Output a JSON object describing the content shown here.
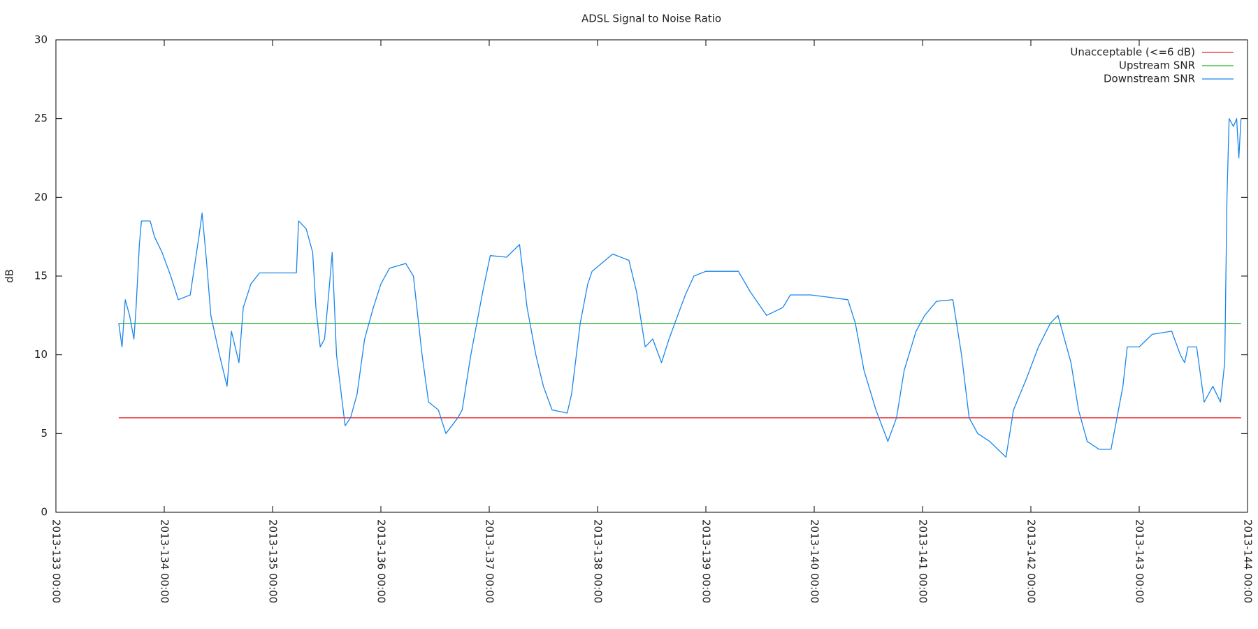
{
  "chart_data": {
    "type": "line",
    "title": "ADSL Signal to Noise Ratio",
    "y_label": "dB",
    "xlim": [
      133,
      144
    ],
    "xticks": [
      {
        "value": 133,
        "label": "2013-133 00:00"
      },
      {
        "value": 134,
        "label": "2013-134 00:00"
      },
      {
        "value": 135,
        "label": "2013-135 00:00"
      },
      {
        "value": 136,
        "label": "2013-136 00:00"
      },
      {
        "value": 137,
        "label": "2013-137 00:00"
      },
      {
        "value": 138,
        "label": "2013-138 00:00"
      },
      {
        "value": 139,
        "label": "2013-139 00:00"
      },
      {
        "value": 140,
        "label": "2013-140 00:00"
      },
      {
        "value": 141,
        "label": "2013-141 00:00"
      },
      {
        "value": 142,
        "label": "2013-142 00:00"
      },
      {
        "value": 143,
        "label": "2013-143 00:00"
      },
      {
        "value": 144,
        "label": "2013-144 00:00"
      }
    ],
    "ylim": [
      0,
      30
    ],
    "yticks": [
      0,
      5,
      10,
      15,
      20,
      25,
      30
    ],
    "grid": false,
    "legend": "top-right",
    "series": [
      {
        "name": "Unacceptable (<=6 dB)",
        "color": "#e8262b",
        "x": [
          133.58,
          143.94
        ],
        "values": [
          6,
          6
        ]
      },
      {
        "name": "Upstream SNR",
        "color": "#2ab32a",
        "x": [
          133.58,
          143.94
        ],
        "values": [
          12,
          12
        ]
      },
      {
        "name": "Downstream SNR",
        "color": "#1a86ec",
        "x": [
          133.58,
          133.61,
          133.64,
          133.68,
          133.72,
          133.74,
          133.77,
          133.79,
          133.87,
          133.91,
          133.98,
          134.06,
          134.13,
          134.24,
          134.32,
          134.35,
          134.39,
          134.43,
          134.51,
          134.58,
          134.62,
          134.69,
          134.73,
          134.8,
          134.88,
          135.22,
          135.24,
          135.31,
          135.37,
          135.4,
          135.44,
          135.48,
          135.52,
          135.55,
          135.59,
          135.67,
          135.72,
          135.78,
          135.85,
          135.93,
          136.0,
          136.08,
          136.23,
          136.3,
          136.38,
          136.44,
          136.53,
          136.6,
          136.71,
          136.75,
          136.83,
          136.94,
          137.01,
          137.16,
          137.28,
          137.35,
          137.43,
          137.5,
          137.58,
          137.72,
          137.76,
          137.84,
          137.91,
          137.95,
          138.14,
          138.29,
          138.36,
          138.44,
          138.51,
          138.59,
          138.66,
          138.74,
          138.81,
          138.89,
          139.0,
          139.3,
          139.41,
          139.56,
          139.71,
          139.78,
          139.97,
          140.31,
          140.38,
          140.46,
          140.57,
          140.68,
          140.76,
          140.83,
          140.94,
          141.02,
          141.13,
          141.28,
          141.36,
          141.43,
          141.51,
          141.62,
          141.77,
          141.84,
          141.96,
          142.07,
          142.18,
          142.25,
          142.37,
          142.44,
          142.52,
          142.63,
          142.74,
          142.85,
          142.89,
          143.0,
          143.12,
          143.3,
          143.38,
          143.42,
          143.45,
          143.53,
          143.6,
          143.68,
          143.75,
          143.79,
          143.81,
          143.83,
          143.87,
          143.9,
          143.92,
          143.94
        ],
        "values": [
          12,
          10.5,
          13.5,
          12.5,
          11,
          13,
          17,
          18.5,
          18.5,
          17.5,
          16.5,
          15,
          13.5,
          13.8,
          17.5,
          19,
          16,
          12.5,
          10,
          8,
          11.5,
          9.5,
          13,
          14.5,
          15.2,
          15.2,
          18.5,
          18,
          16.5,
          13,
          10.5,
          11,
          14,
          16.5,
          10,
          5.5,
          6,
          7.5,
          11,
          13,
          14.5,
          15.5,
          15.8,
          15,
          10,
          7,
          6.5,
          5,
          6,
          6.5,
          10,
          14,
          16.3,
          16.2,
          17,
          13,
          10,
          8,
          6.5,
          6.3,
          7.5,
          12,
          14.5,
          15.3,
          16.4,
          16,
          14,
          10.5,
          11,
          9.5,
          11,
          12.5,
          13.8,
          15,
          15.3,
          15.3,
          14,
          12.5,
          13,
          13.8,
          13.8,
          13.5,
          12,
          9,
          6.5,
          4.5,
          6,
          9,
          11.5,
          12.5,
          13.4,
          13.5,
          10,
          6,
          5,
          4.5,
          3.5,
          6.5,
          8.5,
          10.5,
          12,
          12.5,
          9.5,
          6.5,
          4.5,
          4,
          4,
          8,
          10.5,
          10.5,
          11.3,
          11.5,
          10,
          9.5,
          10.5,
          10.5,
          7,
          8,
          7,
          9.5,
          20,
          25,
          24.5,
          25,
          22.5,
          25
        ]
      }
    ]
  }
}
